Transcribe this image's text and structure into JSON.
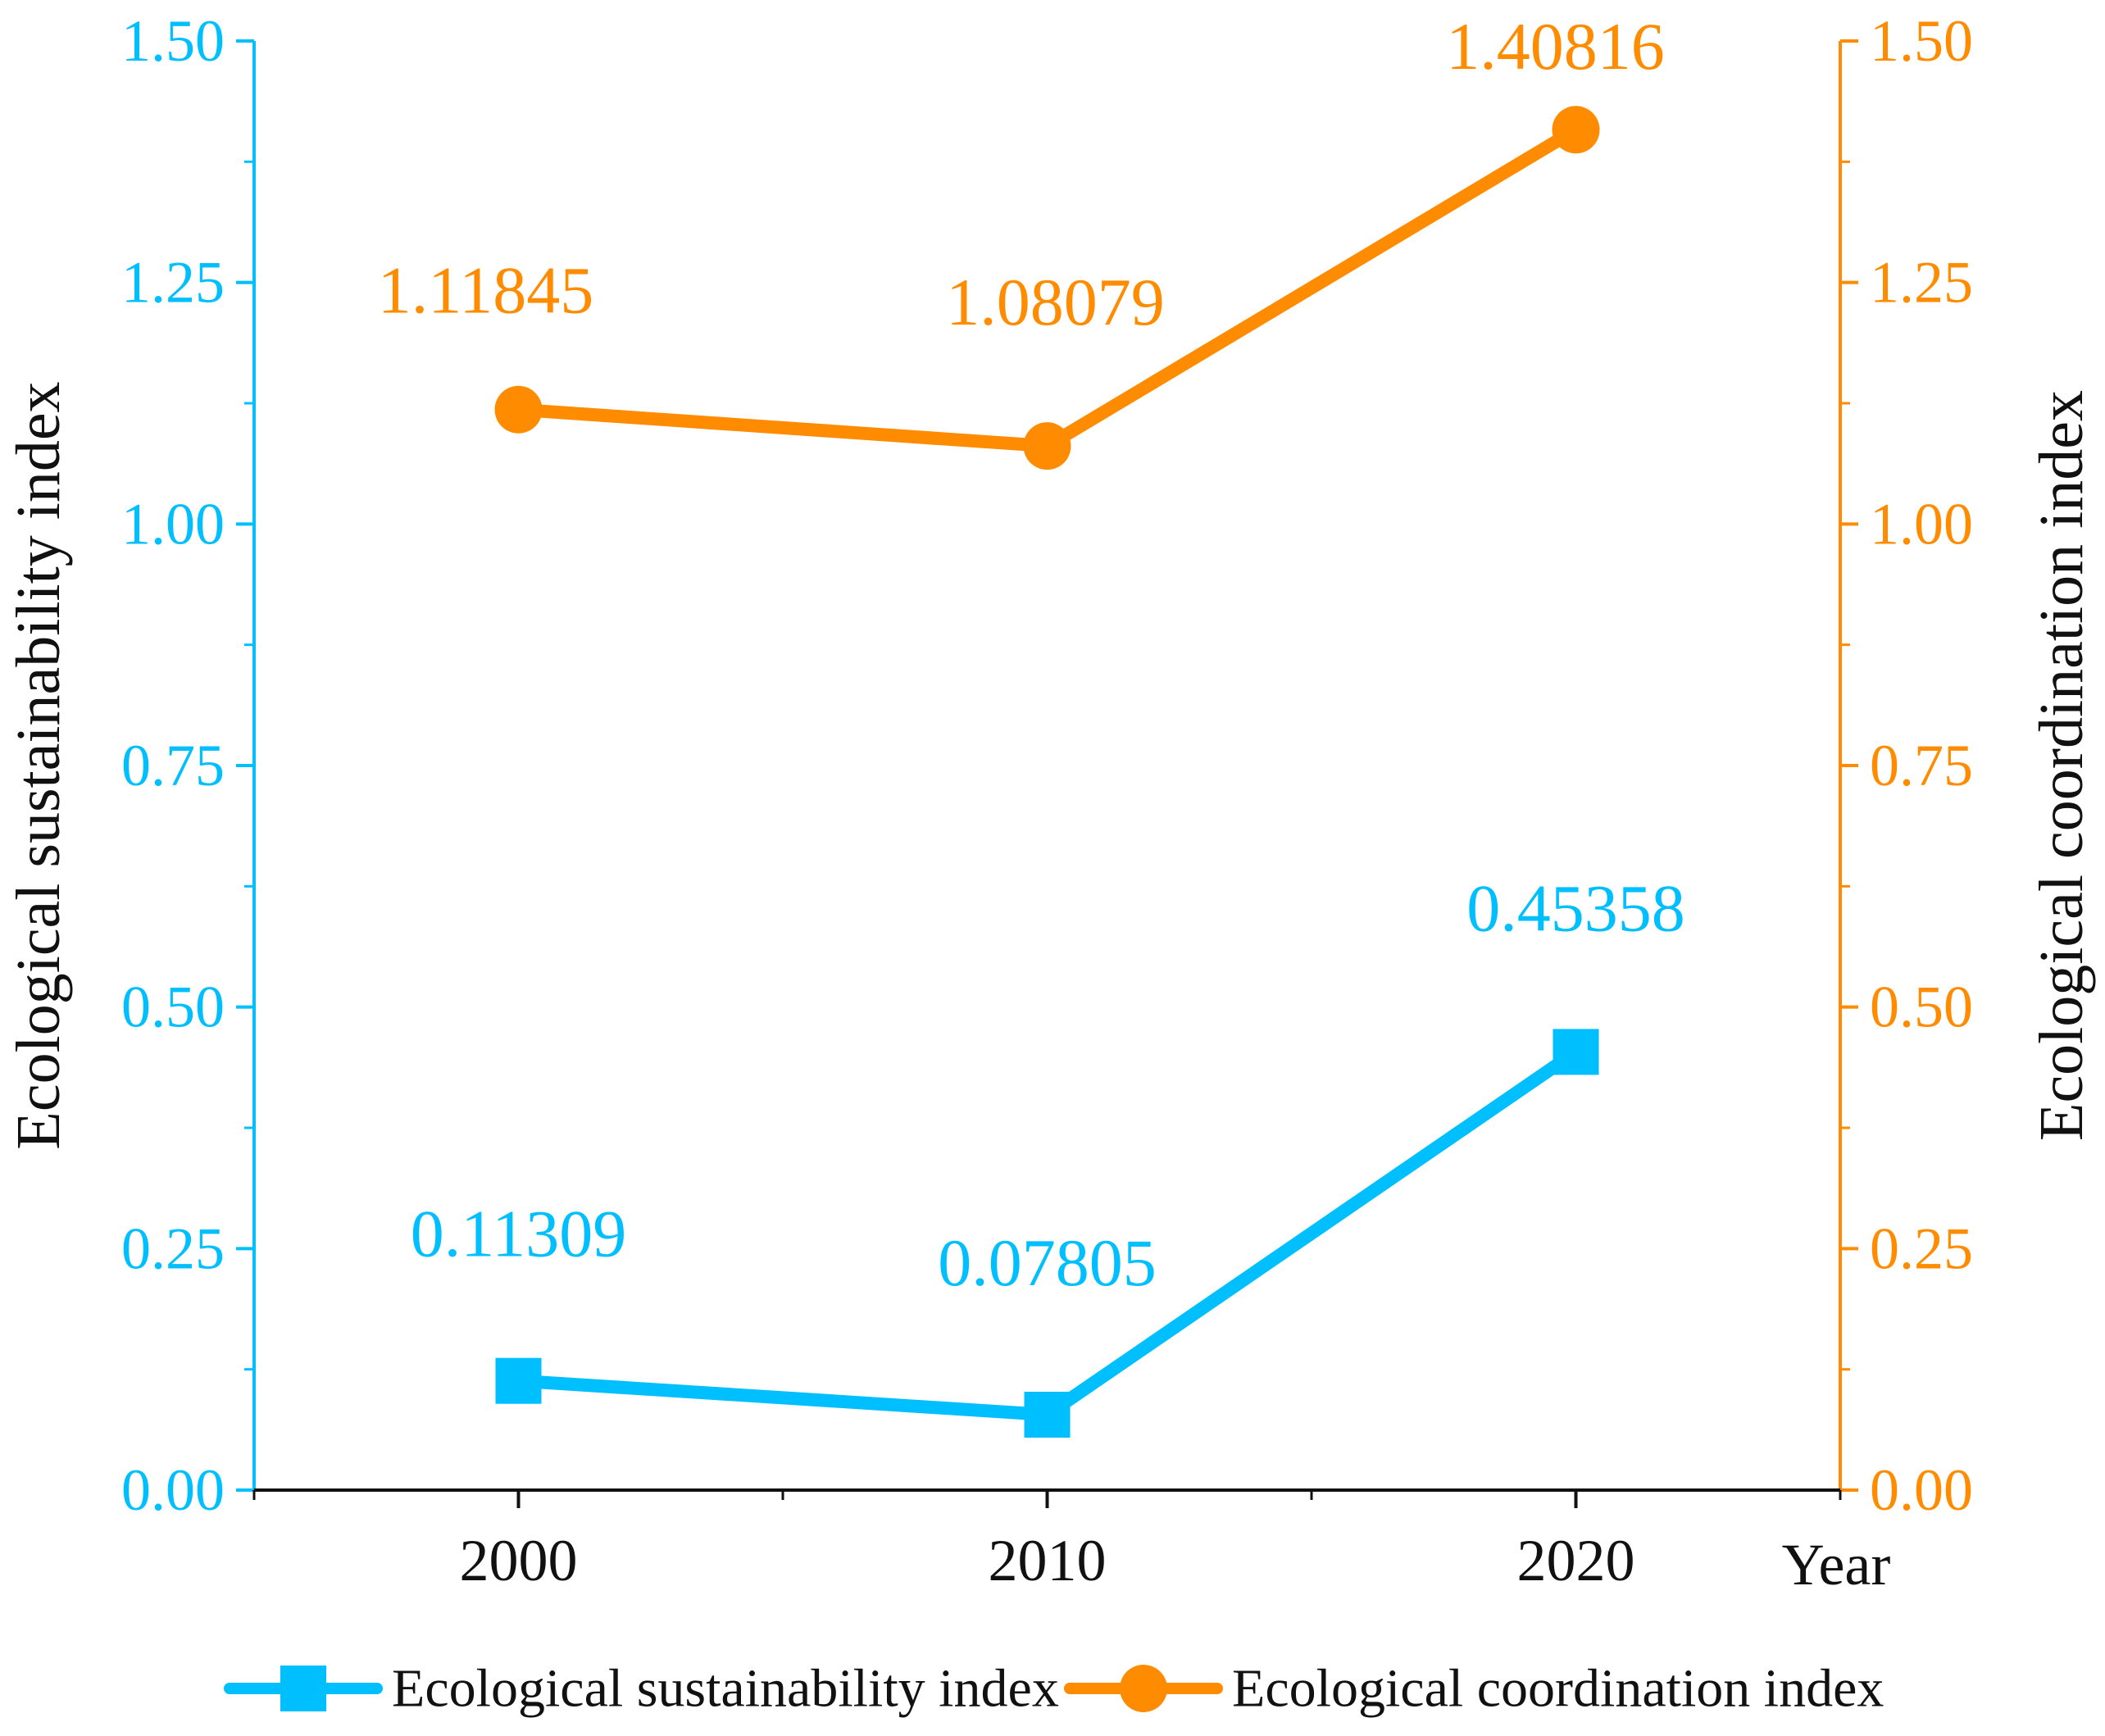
{
  "chart_data": {
    "type": "line",
    "x_axis": {
      "label": "Year",
      "categories": [
        "2000",
        "2010",
        "2020"
      ]
    },
    "y_left": {
      "label": "Ecological sustainability index",
      "ylim": [
        0,
        1.5
      ],
      "ticks": [
        "0.00",
        "0.25",
        "0.50",
        "0.75",
        "1.00",
        "1.25",
        "1.50"
      ],
      "color": "#00BFFF"
    },
    "y_right": {
      "label": "Ecological coordination index",
      "ylim": [
        0,
        1.5
      ],
      "ticks": [
        "0.00",
        "0.25",
        "0.50",
        "0.75",
        "1.00",
        "1.25",
        "1.50"
      ],
      "color": "#FF8C00"
    },
    "series": [
      {
        "name": "Ecological sustainability index",
        "axis": "left",
        "marker": "square",
        "color": "#00BFFF",
        "values": [
          0.11309,
          0.07805,
          0.45358
        ],
        "labels": [
          "0.11309",
          "0.07805",
          "0.45358"
        ]
      },
      {
        "name": "Ecological coordination index",
        "axis": "right",
        "marker": "circle",
        "color": "#FF8C00",
        "values": [
          1.11845,
          1.08079,
          1.40816
        ],
        "labels": [
          "1.11845",
          "1.08079",
          "1.40816"
        ]
      }
    ],
    "legend": {
      "position": "bottom",
      "items": [
        "Ecological sustainability index",
        "Ecological coordination index"
      ]
    }
  }
}
